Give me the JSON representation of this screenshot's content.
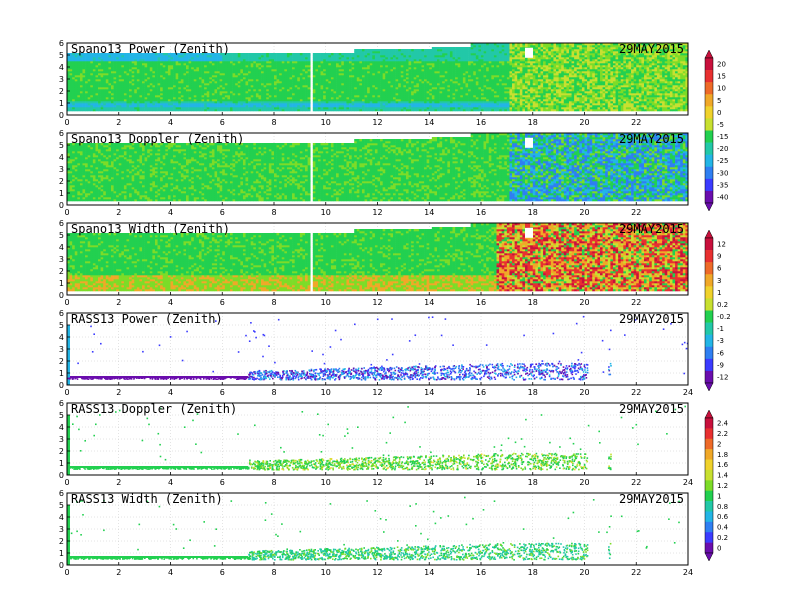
{
  "chart_data": [
    {
      "type": "heatmap",
      "title": "Spano13 Power (Zenith)",
      "date": "29MAY2015",
      "x": [
        0,
        2,
        4,
        6,
        8,
        10,
        12,
        14,
        16,
        18,
        20,
        22
      ],
      "y": [
        0,
        1,
        2,
        3,
        4,
        5,
        6
      ],
      "xlim": [
        0,
        24
      ],
      "ylim": [
        0,
        6
      ],
      "colorbar_levels": [
        "20",
        "15",
        "10",
        "5",
        "0",
        "-5",
        "-15",
        "-20",
        "-25",
        "-30",
        "-35",
        "-40"
      ]
    },
    {
      "type": "heatmap",
      "title": "Spano13 Doppler (Zenith)",
      "date": "29MAY2015",
      "x": [
        0,
        2,
        4,
        6,
        8,
        10,
        12,
        14,
        16,
        18,
        20,
        22
      ],
      "y": [
        0,
        1,
        2,
        3,
        4,
        5,
        6
      ],
      "xlim": [
        0,
        24
      ],
      "ylim": [
        0,
        6
      ]
    },
    {
      "type": "heatmap",
      "title": "Spano13 Width (Zenith)",
      "date": "29MAY2015",
      "x": [
        0,
        2,
        4,
        6,
        8,
        10,
        12,
        14,
        16,
        18,
        20,
        22
      ],
      "y": [
        0,
        1,
        2,
        3,
        4,
        5,
        6
      ],
      "xlim": [
        0,
        24
      ],
      "ylim": [
        0,
        6
      ],
      "colorbar_levels": [
        "12",
        "9",
        "6",
        "3",
        "1",
        "0.2",
        "-0.2",
        "-1",
        "-3",
        "-6",
        "-9",
        "-12"
      ]
    },
    {
      "type": "heatmap",
      "title": "RASS13 Power (Zenith)",
      "date": "29MAY2015",
      "x": [
        0,
        2,
        4,
        6,
        8,
        10,
        12,
        14,
        16,
        18,
        20,
        22,
        24
      ],
      "y": [
        0,
        1,
        2,
        3,
        4,
        5,
        6
      ],
      "xlim": [
        0,
        24
      ],
      "ylim": [
        0,
        6
      ]
    },
    {
      "type": "heatmap",
      "title": "RASS13 Doppler (Zenith)",
      "date": "29MAY2015",
      "x": [
        0,
        2,
        4,
        6,
        8,
        10,
        12,
        14,
        16,
        18,
        20,
        22,
        24
      ],
      "y": [
        0,
        1,
        2,
        3,
        4,
        5,
        6
      ],
      "xlim": [
        0,
        24
      ],
      "ylim": [
        0,
        6
      ],
      "colorbar_levels": [
        "2.4",
        "2.2",
        "2",
        "1.8",
        "1.6",
        "1.4",
        "1.2",
        "1",
        "0.8",
        "0.6",
        "0.4",
        "0.2",
        "0"
      ]
    },
    {
      "type": "heatmap",
      "title": "RASS13 Width (Zenith)",
      "date": "29MAY2015",
      "x": [
        0,
        2,
        4,
        6,
        8,
        10,
        12,
        14,
        16,
        18,
        20,
        22,
        24
      ],
      "y": [
        0,
        1,
        2,
        3,
        4,
        5,
        6
      ],
      "xlim": [
        0,
        24
      ],
      "ylim": [
        0,
        6
      ]
    }
  ]
}
